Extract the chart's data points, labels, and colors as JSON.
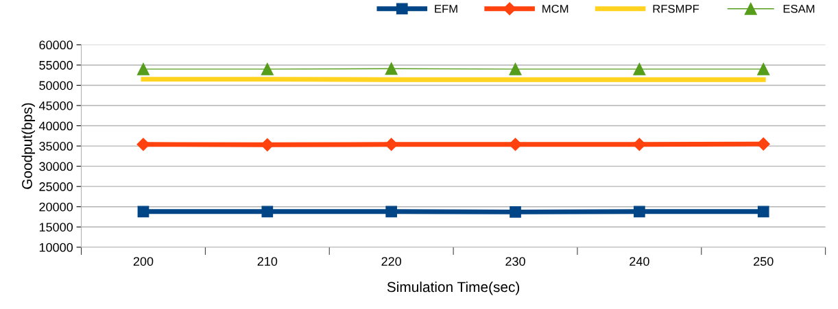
{
  "chart_data": {
    "type": "line",
    "xlabel": "Simulation Time(sec)",
    "ylabel": "Goodput(bps)",
    "categories": [
      "200",
      "210",
      "220",
      "230",
      "240",
      "250"
    ],
    "series": [
      {
        "name": "EFM",
        "color": "#004586",
        "marker": "square",
        "values": [
          18800,
          18800,
          18800,
          18700,
          18800,
          18800
        ]
      },
      {
        "name": "MCM",
        "color": "#ff420e",
        "marker": "diamond",
        "values": [
          35400,
          35300,
          35400,
          35400,
          35400,
          35500
        ]
      },
      {
        "name": "RFSMPF",
        "color": "#ffd320",
        "marker": "none",
        "values": [
          51500,
          51500,
          51400,
          51400,
          51400,
          51400
        ]
      },
      {
        "name": "ESAM",
        "color": "#579d1c",
        "marker": "triangle",
        "values": [
          54000,
          54000,
          54100,
          54000,
          54000,
          54000
        ]
      }
    ],
    "ylim": [
      10000,
      60000
    ],
    "yticks": [
      10000,
      15000,
      20000,
      25000,
      30000,
      35000,
      40000,
      45000,
      50000,
      55000,
      60000
    ],
    "grid": "y",
    "legend": "top right"
  }
}
